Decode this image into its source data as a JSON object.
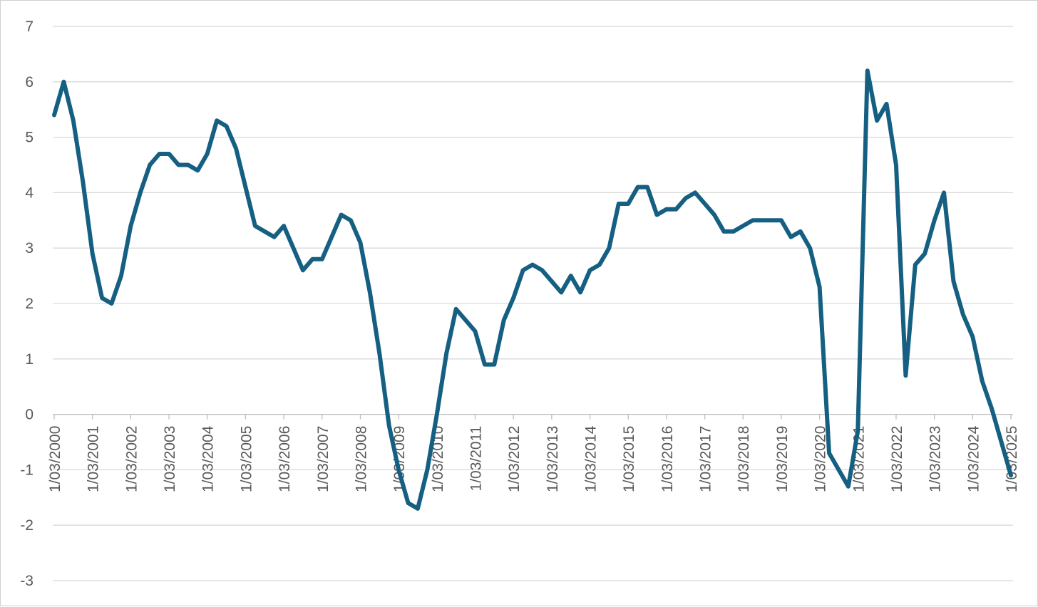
{
  "chart_data": {
    "type": "line",
    "title": "",
    "xlabel": "",
    "ylabel": "",
    "ylim": [
      -3,
      7
    ],
    "yticks": [
      7,
      6,
      5,
      4,
      3,
      2,
      1,
      0,
      -1,
      -2,
      -3
    ],
    "grid": true,
    "legend": "none",
    "x_tick_labels": [
      "1/03/2000",
      "1/03/2001",
      "1/03/2002",
      "1/03/2003",
      "1/03/2004",
      "1/03/2005",
      "1/03/2006",
      "1/03/2007",
      "1/03/2008",
      "1/03/2009",
      "1/03/2010",
      "1/03/2011",
      "1/03/2012",
      "1/03/2013",
      "1/03/2014",
      "1/03/2015",
      "1/03/2016",
      "1/03/2017",
      "1/03/2018",
      "1/03/2019",
      "1/03/2020",
      "1/03/2021",
      "1/03/2022",
      "1/03/2023",
      "1/03/2024",
      "1/03/2025"
    ],
    "x": [
      "1/03/2000",
      "1/06/2000",
      "1/09/2000",
      "1/12/2000",
      "1/03/2001",
      "1/06/2001",
      "1/09/2001",
      "1/12/2001",
      "1/03/2002",
      "1/06/2002",
      "1/09/2002",
      "1/12/2002",
      "1/03/2003",
      "1/06/2003",
      "1/09/2003",
      "1/12/2003",
      "1/03/2004",
      "1/06/2004",
      "1/09/2004",
      "1/12/2004",
      "1/03/2005",
      "1/06/2005",
      "1/09/2005",
      "1/12/2005",
      "1/03/2006",
      "1/06/2006",
      "1/09/2006",
      "1/12/2006",
      "1/03/2007",
      "1/06/2007",
      "1/09/2007",
      "1/12/2007",
      "1/03/2008",
      "1/06/2008",
      "1/09/2008",
      "1/12/2008",
      "1/03/2009",
      "1/06/2009",
      "1/09/2009",
      "1/12/2009",
      "1/03/2010",
      "1/06/2010",
      "1/09/2010",
      "1/12/2010",
      "1/03/2011",
      "1/06/2011",
      "1/09/2011",
      "1/12/2011",
      "1/03/2012",
      "1/06/2012",
      "1/09/2012",
      "1/12/2012",
      "1/03/2013",
      "1/06/2013",
      "1/09/2013",
      "1/12/2013",
      "1/03/2014",
      "1/06/2014",
      "1/09/2014",
      "1/12/2014",
      "1/03/2015",
      "1/06/2015",
      "1/09/2015",
      "1/12/2015",
      "1/03/2016",
      "1/06/2016",
      "1/09/2016",
      "1/12/2016",
      "1/03/2017",
      "1/06/2017",
      "1/09/2017",
      "1/12/2017",
      "1/03/2018",
      "1/06/2018",
      "1/09/2018",
      "1/12/2018",
      "1/03/2019",
      "1/06/2019",
      "1/09/2019",
      "1/12/2019",
      "1/03/2020",
      "1/06/2020",
      "1/09/2020",
      "1/12/2020",
      "1/03/2021",
      "1/06/2021",
      "1/09/2021",
      "1/12/2021",
      "1/03/2022",
      "1/06/2022",
      "1/09/2022",
      "1/12/2022",
      "1/03/2023",
      "1/06/2023",
      "1/09/2023",
      "1/12/2023",
      "1/03/2024",
      "1/06/2024",
      "1/09/2024",
      "1/12/2024",
      "1/03/2025"
    ],
    "series": [
      {
        "color": "#156082",
        "values": [
          5.4,
          6.0,
          5.3,
          4.2,
          2.9,
          2.1,
          2.0,
          2.5,
          3.4,
          4.0,
          4.5,
          4.7,
          4.7,
          4.5,
          4.5,
          4.4,
          4.7,
          5.3,
          5.2,
          4.8,
          4.1,
          3.4,
          3.3,
          3.2,
          3.4,
          3.0,
          2.6,
          2.8,
          2.8,
          3.2,
          3.6,
          3.5,
          3.1,
          2.2,
          1.1,
          -0.2,
          -1.0,
          -1.6,
          -1.7,
          -1.0,
          0.0,
          1.1,
          1.9,
          1.7,
          1.5,
          0.9,
          0.9,
          1.7,
          2.1,
          2.6,
          2.7,
          2.6,
          2.4,
          2.2,
          2.5,
          2.2,
          2.6,
          2.7,
          3.0,
          3.8,
          3.8,
          4.1,
          4.1,
          3.6,
          3.7,
          3.7,
          3.9,
          4.0,
          3.8,
          3.6,
          3.3,
          3.3,
          3.4,
          3.5,
          3.5,
          3.5,
          3.5,
          3.2,
          3.3,
          3.0,
          2.3,
          -0.7,
          -1.0,
          -1.3,
          -0.3,
          6.2,
          5.3,
          5.6,
          4.5,
          0.7,
          2.7,
          2.9,
          3.5,
          4.0,
          2.4,
          1.8,
          1.4,
          0.6,
          0.1,
          -0.5,
          -1.1
        ]
      }
    ]
  }
}
